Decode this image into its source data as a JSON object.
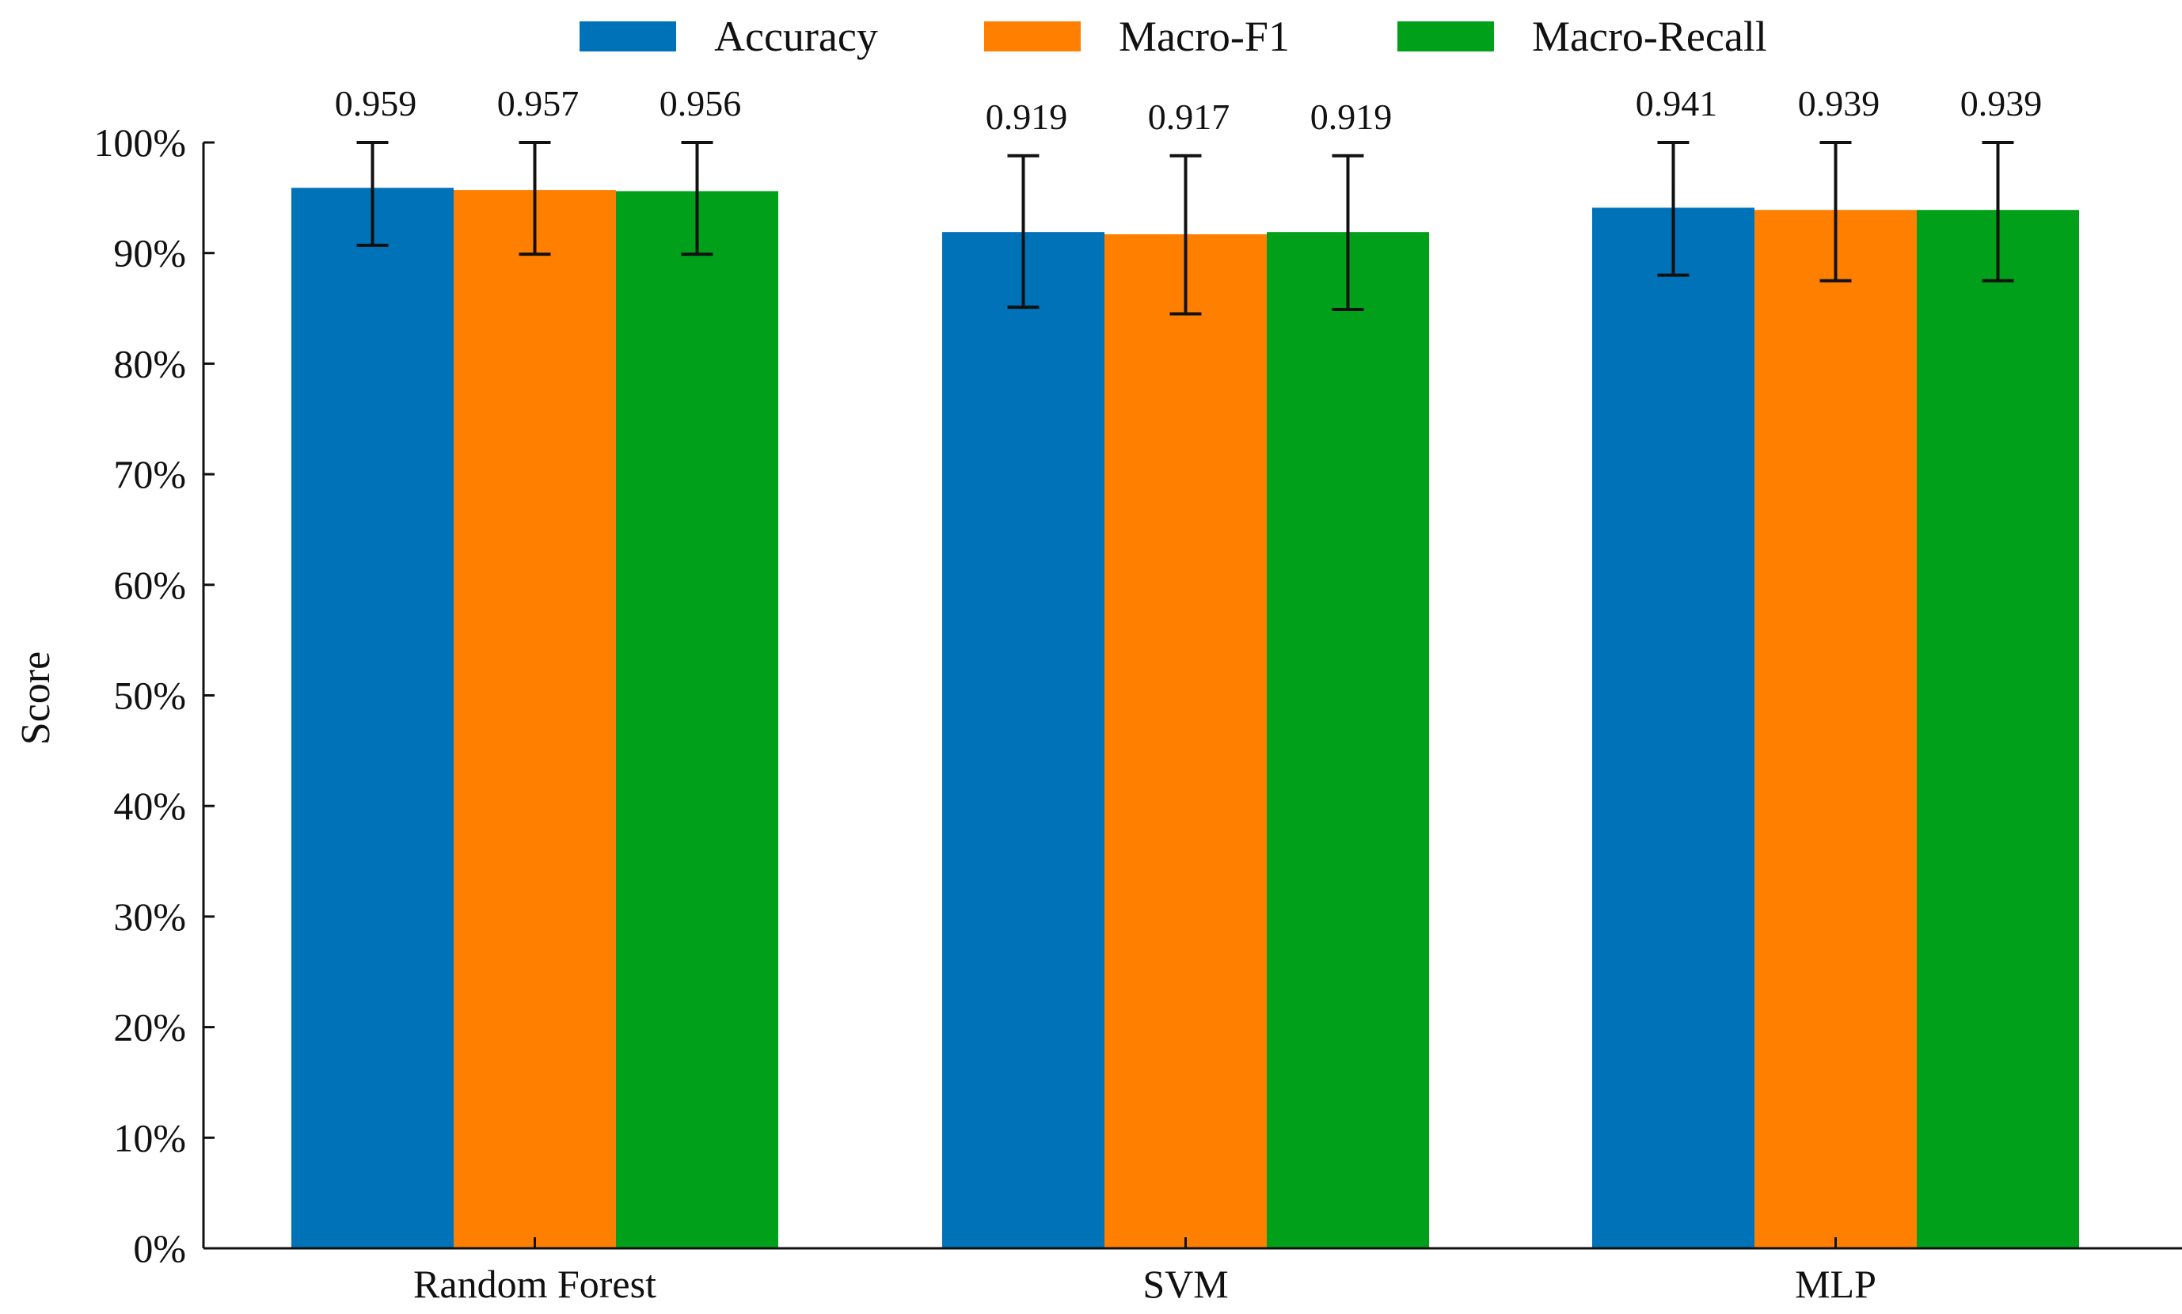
{
  "chart_data": {
    "type": "bar",
    "categories": [
      "Random Forest",
      "SVM",
      "MLP"
    ],
    "series": [
      {
        "name": "Accuracy",
        "color": "#0072B8",
        "values": [
          0.959,
          0.919,
          0.941
        ],
        "err_low": [
          0.907,
          0.851,
          0.88
        ],
        "err_high": [
          1.0,
          0.988,
          1.0
        ]
      },
      {
        "name": "Macro-F1",
        "color": "#FF7F00",
        "values": [
          0.957,
          0.917,
          0.939
        ],
        "err_low": [
          0.899,
          0.845,
          0.875
        ],
        "err_high": [
          1.0,
          0.988,
          1.0
        ]
      },
      {
        "name": "Macro-Recall",
        "color": "#00A01A",
        "values": [
          0.956,
          0.919,
          0.939
        ],
        "err_low": [
          0.899,
          0.849,
          0.875
        ],
        "err_high": [
          1.0,
          0.988,
          1.0
        ]
      }
    ],
    "value_labels": [
      [
        "0.959",
        "0.919",
        "0.941"
      ],
      [
        "0.957",
        "0.917",
        "0.939"
      ],
      [
        "0.956",
        "0.919",
        "0.939"
      ]
    ],
    "ylabel": "Score",
    "xlabel": "",
    "ylim": [
      0,
      1.0
    ],
    "yticks": [
      "0%",
      "10%",
      "20%",
      "30%",
      "40%",
      "50%",
      "60%",
      "70%",
      "80%",
      "90%",
      "100%"
    ],
    "grid": false,
    "legend_position": "top-center"
  }
}
